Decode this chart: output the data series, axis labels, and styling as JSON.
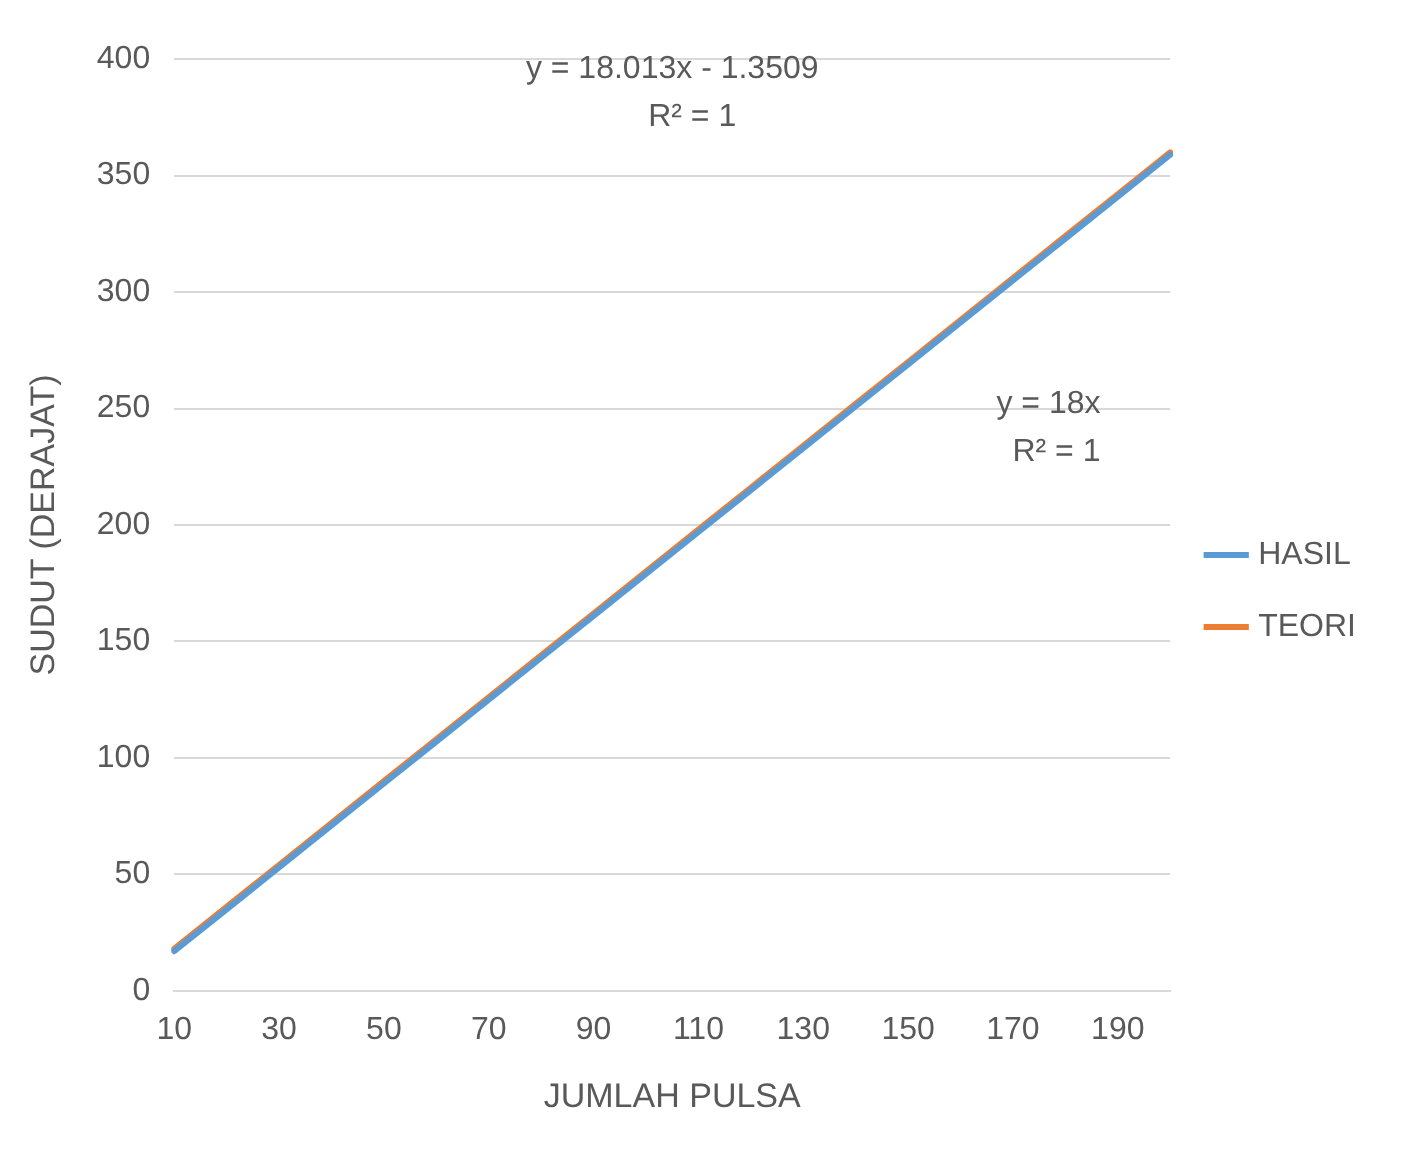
{
  "chart_data": {
    "type": "line",
    "xlabel": "JUMLAH PULSA",
    "ylabel": "SUDUT (DERAJAT)",
    "categories": [
      "10",
      null,
      "30",
      null,
      "50",
      null,
      "70",
      null,
      "90",
      null,
      "110",
      null,
      "130",
      null,
      "150",
      null,
      "170",
      null,
      "190",
      null
    ],
    "series": [
      {
        "name": "HASIL",
        "color": "#5b9bd5",
        "values": [
          17,
          35,
          53,
          71,
          89,
          107,
          125,
          143,
          161,
          179,
          197,
          215,
          233,
          251,
          269,
          287,
          305,
          323,
          341,
          359
        ]
      },
      {
        "name": "TEORI",
        "color": "#ed7d31",
        "values": [
          18,
          36,
          54,
          72,
          90,
          108,
          126,
          144,
          162,
          180,
          198,
          216,
          234,
          252,
          270,
          288,
          306,
          324,
          342,
          360
        ]
      }
    ],
    "ylim": [
      0,
      400
    ],
    "yticks": [
      0,
      50,
      100,
      150,
      200,
      250,
      300,
      350,
      400
    ],
    "grid": "y",
    "legend": "right",
    "marker": "none",
    "line_style": "solid",
    "annotations": [
      "y = 18.013x - 1.3509\nR² = 1",
      "y = 18x\nR² = 1"
    ]
  }
}
